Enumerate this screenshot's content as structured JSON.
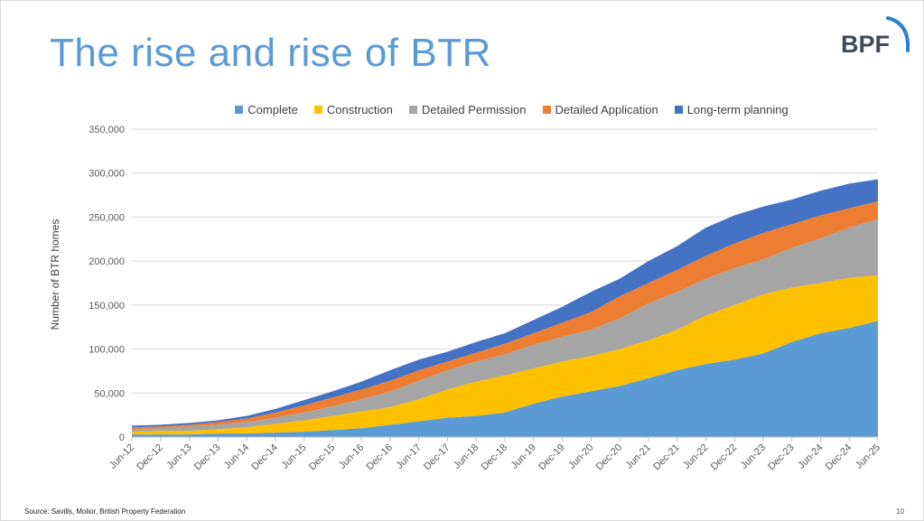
{
  "slide": {
    "title": "The rise and rise of BTR",
    "logo_text": "BPF",
    "source": "Source: Savills, Molior, British Property Federation",
    "page_number": "10",
    "title_color": "#5b9bd5"
  },
  "chart_data": {
    "type": "area",
    "stacked": true,
    "title": "",
    "xlabel": "",
    "ylabel": "Number of BTR homes",
    "ylim": [
      0,
      350000
    ],
    "yticks": [
      "0",
      "50,000",
      "100,000",
      "150,000",
      "200,000",
      "250,000",
      "300,000",
      "350,000"
    ],
    "grid": true,
    "legend_position": "top",
    "categories": [
      "Jun-12",
      "Dec-12",
      "Jun-13",
      "Dec-13",
      "Jun-14",
      "Dec-14",
      "Jun-15",
      "Dec-15",
      "Jun-16",
      "Dec-16",
      "Jun-17",
      "Dec-17",
      "Jun-18",
      "Dec-18",
      "Jun-19",
      "Dec-19",
      "Jun-20",
      "Dec-20",
      "Jun-21",
      "Dec-21",
      "Jun-22",
      "Dec-22",
      "Jun-23",
      "Dec-23",
      "Jun-24",
      "Dec-24",
      "Jun-25"
    ],
    "series": [
      {
        "name": "Complete",
        "color": "#5b9bd5",
        "values": [
          3000,
          3000,
          3000,
          4000,
          4000,
          5000,
          6000,
          8000,
          10000,
          14000,
          18000,
          22000,
          24000,
          28000,
          38000,
          46000,
          52000,
          58000,
          67000,
          76000,
          83000,
          88000,
          95000,
          108000,
          118000,
          124000,
          132000
        ]
      },
      {
        "name": "Construction",
        "color": "#ffc000",
        "values": [
          3000,
          4000,
          4000,
          5000,
          7000,
          10000,
          13000,
          16000,
          19000,
          20000,
          25000,
          32000,
          39000,
          42000,
          40000,
          40000,
          40000,
          42000,
          43000,
          46000,
          55000,
          62000,
          67000,
          62000,
          57000,
          57000,
          52000
        ]
      },
      {
        "name": "Detailed Permission",
        "color": "#a5a5a5",
        "values": [
          3000,
          3000,
          5000,
          5000,
          6000,
          7000,
          9000,
          11000,
          14000,
          18000,
          21000,
          22000,
          23000,
          24000,
          27000,
          28000,
          30000,
          35000,
          42000,
          43000,
          42000,
          42000,
          40000,
          45000,
          51000,
          57000,
          64000
        ]
      },
      {
        "name": "Detailed Application",
        "color": "#ed7d31",
        "values": [
          2000,
          2000,
          2000,
          3000,
          4000,
          6000,
          8000,
          10000,
          11000,
          12000,
          12000,
          10000,
          10000,
          12000,
          13000,
          16000,
          20000,
          25000,
          23000,
          25000,
          26000,
          28000,
          30000,
          27000,
          26000,
          22000,
          20000
        ]
      },
      {
        "name": "Long-term planning",
        "color": "#4472c4",
        "values": [
          2000,
          2000,
          2000,
          2000,
          3000,
          4000,
          6000,
          7000,
          9000,
          12000,
          12000,
          11000,
          12000,
          12000,
          15000,
          18000,
          23000,
          20000,
          25000,
          27000,
          32000,
          32000,
          30000,
          28000,
          28000,
          28000,
          25000
        ]
      }
    ]
  }
}
